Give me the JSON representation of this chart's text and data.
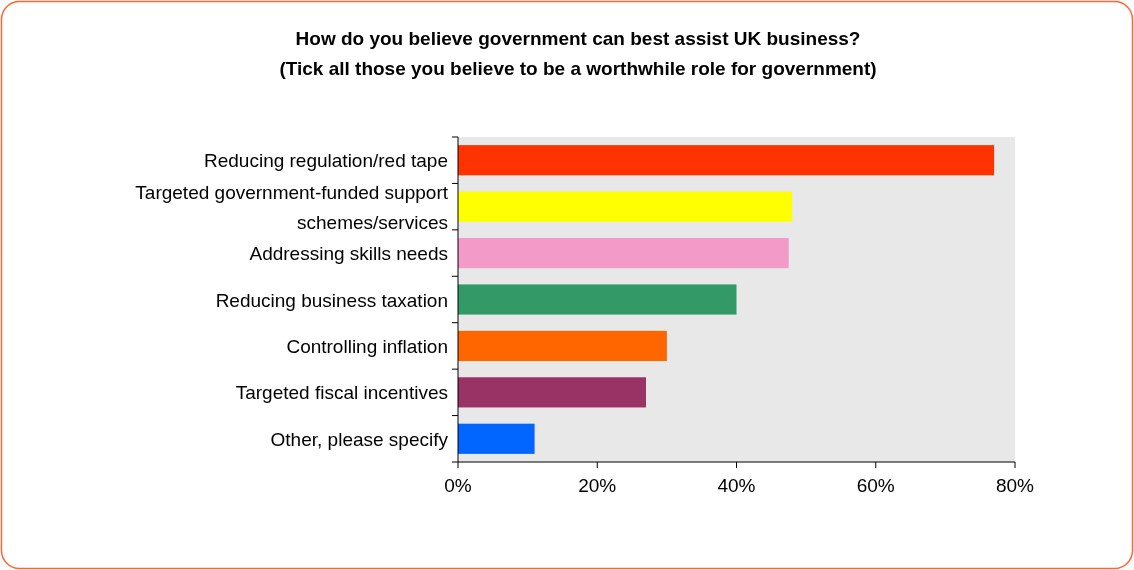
{
  "chart_data": {
    "type": "bar",
    "orientation": "horizontal",
    "title": "How do you believe government can best assist UK business?\n(Tick all those you believe to be a worthwhile role for government)",
    "categories": [
      "Reducing regulation/red tape",
      "Targeted government-funded support schemes/services",
      "Addressing skills needs",
      "Reducing business taxation",
      "Controlling inflation",
      "Targeted fiscal incentives",
      "Other, please specify"
    ],
    "values": [
      77,
      48,
      47.5,
      40,
      30,
      27,
      11
    ],
    "colors": [
      "#ff3300",
      "#ffff00",
      "#f49ac8",
      "#339966",
      "#ff6600",
      "#993366",
      "#0066ff"
    ],
    "xlim": [
      0,
      80
    ],
    "xticks": [
      {
        "value": 0,
        "label": "0%"
      },
      {
        "value": 20,
        "label": "20%"
      },
      {
        "value": 40,
        "label": "40%"
      },
      {
        "value": 60,
        "label": "60%"
      },
      {
        "value": 80,
        "label": "80%"
      }
    ],
    "grid": false
  }
}
